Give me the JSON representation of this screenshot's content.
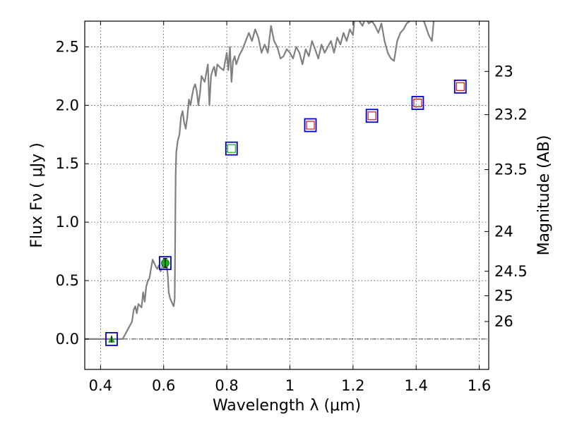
{
  "chart_data": {
    "type": "line",
    "xlabel": "Wavelength  λ (μm)",
    "ylabel": "Flux  Fν  ( μJy )",
    "ylabel_right": "Magnitude (AB)",
    "xlim": [
      0.35,
      1.63
    ],
    "ylim": [
      -0.26,
      2.72
    ],
    "x_ticks": [
      0.4,
      0.6,
      0.8,
      1.0,
      1.2,
      1.4,
      1.6
    ],
    "x_tick_labels": [
      "0.4",
      "0.6",
      "0.8",
      "1",
      "1.2",
      "1.4",
      "1.6"
    ],
    "y_ticks": [
      0.0,
      0.5,
      1.0,
      1.5,
      2.0,
      2.5
    ],
    "y_tick_labels": [
      "0.0",
      "0.5",
      "1.0",
      "1.5",
      "2.0",
      "2.5"
    ],
    "right_ticks": [
      {
        "flux": 2.29,
        "label": "23"
      },
      {
        "flux": 1.92,
        "label": "23.2"
      },
      {
        "flux": 1.45,
        "label": "23.5"
      },
      {
        "flux": 0.92,
        "label": "24"
      },
      {
        "flux": 0.58,
        "label": "24.5"
      },
      {
        "flux": 0.37,
        "label": "25"
      },
      {
        "flux": 0.15,
        "label": "26"
      }
    ],
    "grid": true,
    "zero_line": true,
    "colors": {
      "spectrum": "#808080",
      "model_box": "#0000cc",
      "red_marker": "#cc0000",
      "green_marker": "#00aa00",
      "detection": "#22aa22"
    },
    "series": [
      {
        "kind": "template_spectrum",
        "x": [
          0.35,
          0.465,
          0.47,
          0.48,
          0.49,
          0.5,
          0.505,
          0.51,
          0.515,
          0.52,
          0.53,
          0.535,
          0.54,
          0.545,
          0.55,
          0.555,
          0.56,
          0.565,
          0.57,
          0.575,
          0.58,
          0.585,
          0.59,
          0.595,
          0.6,
          0.605,
          0.61,
          0.613,
          0.616,
          0.62,
          0.625,
          0.628,
          0.632,
          0.635,
          0.638,
          0.64,
          0.645,
          0.65,
          0.655,
          0.66,
          0.665,
          0.67,
          0.675,
          0.68,
          0.685,
          0.69,
          0.695,
          0.7,
          0.705,
          0.71,
          0.715,
          0.72,
          0.73,
          0.74,
          0.745,
          0.75,
          0.755,
          0.76,
          0.765,
          0.77,
          0.78,
          0.79,
          0.8,
          0.805,
          0.81,
          0.815,
          0.82,
          0.825,
          0.83,
          0.84,
          0.85,
          0.86,
          0.87,
          0.88,
          0.89,
          0.9,
          0.91,
          0.92,
          0.93,
          0.94,
          0.95,
          0.96,
          0.97,
          0.98,
          0.99,
          1.0,
          1.01,
          1.02,
          1.03,
          1.04,
          1.05,
          1.06,
          1.07,
          1.08,
          1.09,
          1.1,
          1.11,
          1.12,
          1.13,
          1.14,
          1.15,
          1.16,
          1.17,
          1.18,
          1.19,
          1.2,
          1.205,
          1.21,
          1.215,
          1.22,
          1.23,
          1.24,
          1.25,
          1.26,
          1.27,
          1.28,
          1.29,
          1.3,
          1.31,
          1.32,
          1.33,
          1.34,
          1.35,
          1.36,
          1.37,
          1.38,
          1.39,
          1.4,
          1.41,
          1.42,
          1.43,
          1.44,
          1.45,
          1.46
        ],
        "y": [
          0.0,
          0.0,
          0.0,
          0.05,
          0.1,
          0.15,
          0.25,
          0.28,
          0.22,
          0.3,
          0.27,
          0.4,
          0.32,
          0.45,
          0.5,
          0.52,
          0.6,
          0.68,
          0.65,
          0.62,
          0.6,
          0.63,
          0.58,
          0.61,
          0.68,
          0.66,
          0.62,
          0.55,
          0.4,
          0.35,
          0.32,
          0.3,
          0.28,
          0.35,
          1.4,
          1.6,
          1.7,
          1.75,
          1.9,
          1.95,
          1.85,
          1.8,
          1.9,
          2.05,
          2.0,
          2.08,
          2.15,
          2.18,
          2.12,
          2.0,
          2.1,
          2.25,
          2.2,
          2.35,
          2.0,
          2.25,
          2.3,
          2.33,
          2.25,
          2.35,
          2.32,
          2.3,
          2.45,
          2.3,
          2.5,
          2.2,
          2.38,
          2.42,
          2.35,
          2.43,
          2.48,
          2.55,
          2.62,
          2.55,
          2.65,
          2.58,
          2.45,
          2.52,
          2.45,
          2.68,
          2.55,
          2.5,
          2.4,
          2.42,
          2.48,
          2.45,
          2.4,
          2.5,
          2.45,
          2.35,
          2.48,
          2.42,
          2.55,
          2.48,
          2.4,
          2.52,
          2.45,
          2.5,
          2.55,
          2.45,
          2.58,
          2.52,
          2.62,
          2.55,
          2.65,
          2.6,
          2.75,
          2.78,
          2.85,
          2.72,
          2.68,
          2.75,
          2.7,
          2.72,
          2.68,
          2.62,
          2.7,
          2.55,
          2.45,
          2.4,
          2.38,
          2.55,
          2.62,
          2.65,
          2.7,
          2.72,
          2.78,
          2.85,
          2.9,
          2.75,
          2.68,
          2.6,
          2.55,
          2.85
        ]
      },
      {
        "kind": "model_photometry_box",
        "x": [
          0.435,
          0.605,
          0.815,
          1.065,
          1.26,
          1.405,
          1.54
        ],
        "y": [
          0.0,
          0.65,
          1.63,
          1.83,
          1.91,
          2.02,
          2.16
        ]
      },
      {
        "kind": "observed_photometry_red",
        "x": [
          1.065,
          1.26,
          1.405,
          1.54
        ],
        "y": [
          1.83,
          1.91,
          2.02,
          2.16
        ]
      },
      {
        "kind": "observed_photometry_green",
        "x": [
          0.815
        ],
        "y": [
          1.63
        ]
      },
      {
        "kind": "detection_with_errorbar",
        "x": [
          0.605
        ],
        "y": [
          0.65
        ],
        "yerr": [
          0.04
        ]
      },
      {
        "kind": "upper_limit",
        "x": [
          0.435
        ],
        "y": [
          0.0
        ],
        "yerr": [
          0.03
        ]
      }
    ]
  }
}
